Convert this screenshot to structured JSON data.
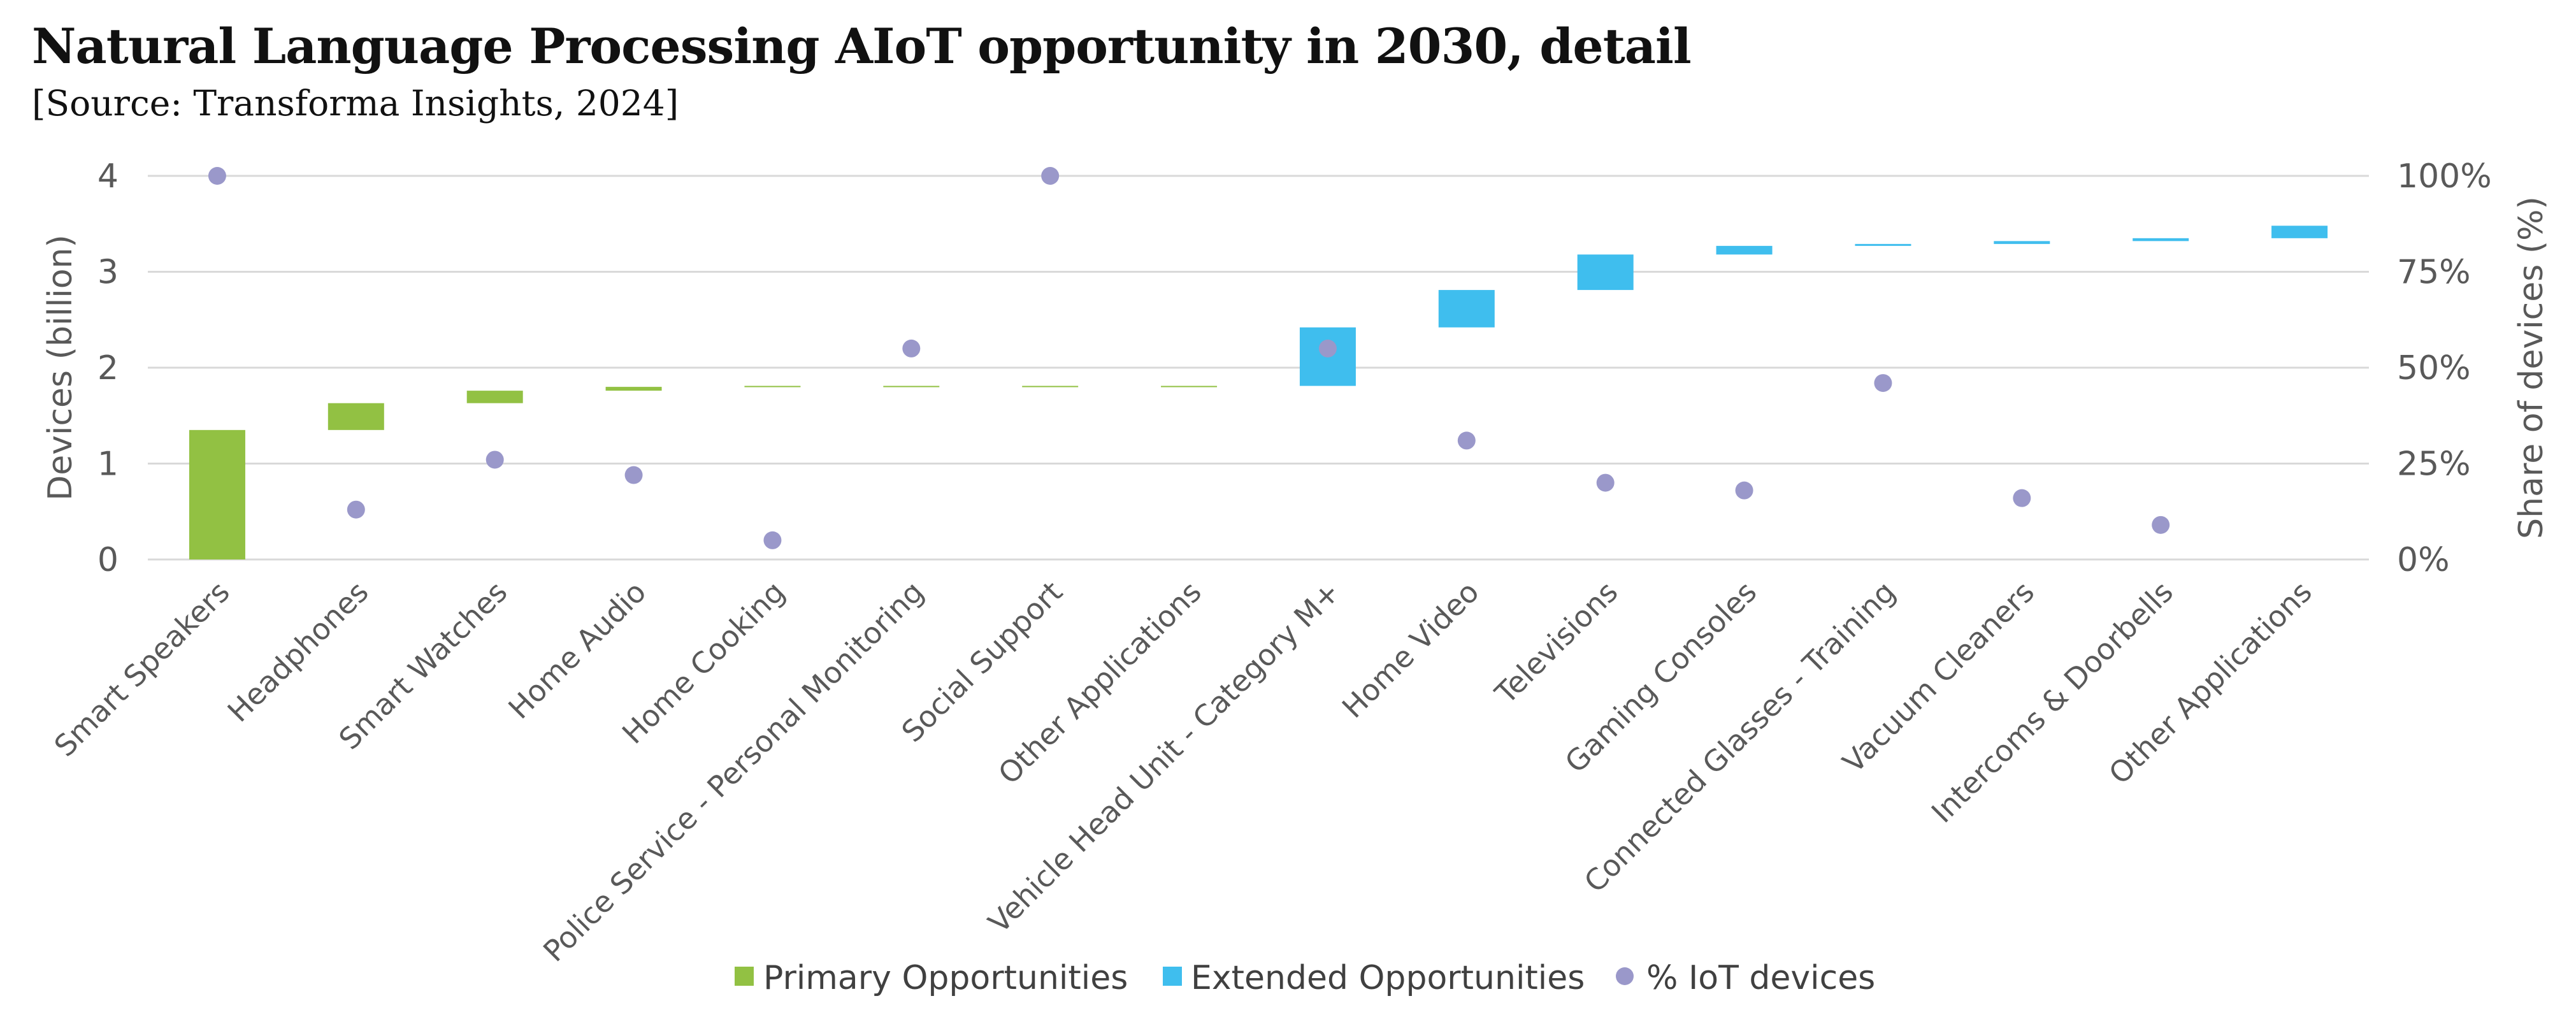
{
  "title": "Natural Language Processing AIoT opportunity in 2030, detail",
  "subtitle": "[Source: Transforma Insights, 2024]",
  "colors": {
    "primary": "#92C143",
    "extended": "#3FBEEE",
    "dot": "#9A98CA",
    "grid": "#D9D9D9",
    "text": "#595959"
  },
  "chart_data": {
    "type": "bar",
    "subtype": "waterfall",
    "title": "Natural Language Processing AIoT opportunity in 2030, detail",
    "subtitle": "[Source: Transforma Insights, 2024]",
    "categories": [
      "Smart Speakers",
      "Headphones",
      "Smart Watches",
      "Home Audio",
      "Home Cooking",
      "Police Service - Personal Monitoring",
      "Social Support",
      "Other Applications",
      "Vehicle Head Unit - Category M+",
      "Home Video",
      "Televisions",
      "Gaming Consoles",
      "Connected Glasses - Training",
      "Vacuum Cleaners",
      "Intercoms & Doorbells",
      "Other Applications"
    ],
    "group": [
      "primary",
      "primary",
      "primary",
      "primary",
      "primary",
      "primary",
      "primary",
      "primary",
      "extended",
      "extended",
      "extended",
      "extended",
      "extended",
      "extended",
      "extended",
      "extended"
    ],
    "bar_start": [
      0,
      1.35,
      1.63,
      1.76,
      1.8,
      1.81,
      1.81,
      1.81,
      1.81,
      2.42,
      2.81,
      3.18,
      3.27,
      3.29,
      3.32,
      3.35
    ],
    "bar_end": [
      1.35,
      1.63,
      1.76,
      1.8,
      1.81,
      1.81,
      1.81,
      1.81,
      2.42,
      2.81,
      3.18,
      3.27,
      3.29,
      3.32,
      3.35,
      3.48
    ],
    "pct_iot_devices": [
      100,
      13,
      26,
      22,
      5,
      55,
      100,
      null,
      55,
      31,
      20,
      18,
      46,
      16,
      9,
      null
    ],
    "ylabel": "Devices (billion)",
    "y2label": "Share of devices (%)",
    "ylim": [
      0,
      4
    ],
    "yticks": [
      "0",
      "1",
      "2",
      "3",
      "4"
    ],
    "y2lim": [
      0,
      100
    ],
    "y2ticks": [
      "0%",
      "25%",
      "50%",
      "75%",
      "100%"
    ],
    "legend": [
      "Primary Opportunities",
      "Extended Opportunities",
      "% IoT devices"
    ],
    "legend_position": "bottom",
    "grid": true
  }
}
